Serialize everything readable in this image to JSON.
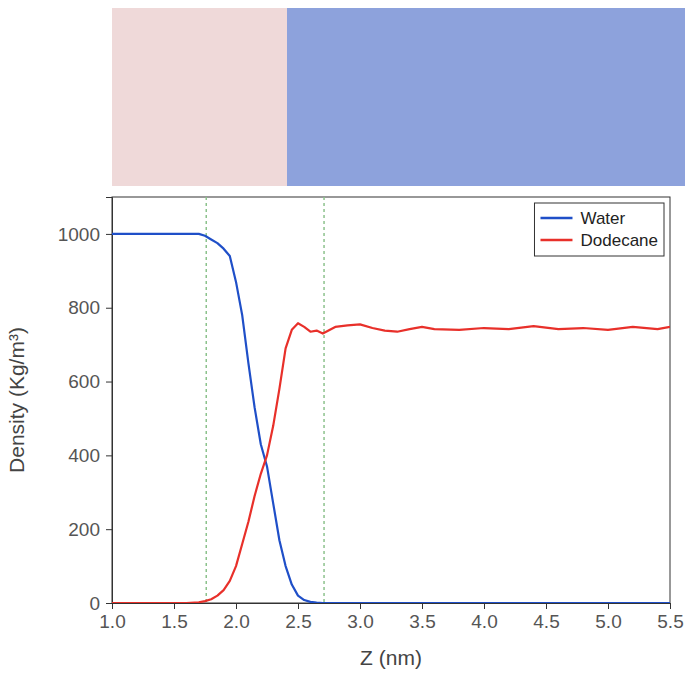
{
  "chart_data": {
    "type": "line",
    "x_label": "Z (nm)",
    "y_label": "Density (Kg/m³)",
    "x": [
      1.0,
      1.5,
      1.6,
      1.7,
      1.75,
      1.8,
      1.85,
      1.9,
      1.95,
      2.0,
      2.05,
      2.1,
      2.15,
      2.2,
      2.25,
      2.3,
      2.35,
      2.4,
      2.45,
      2.5,
      2.55,
      2.6,
      2.65,
      2.7,
      2.8,
      2.9,
      3.0,
      3.1,
      3.2,
      3.3,
      3.4,
      3.5,
      3.6,
      3.8,
      4.0,
      4.2,
      4.4,
      4.6,
      4.8,
      5.0,
      5.2,
      5.4,
      5.5
    ],
    "series": [
      {
        "name": "Water",
        "color": "#1f4fc8",
        "values": [
          1000,
          1000,
          1000,
          1000,
          995,
          985,
          975,
          960,
          940,
          870,
          780,
          650,
          530,
          430,
          370,
          270,
          170,
          100,
          50,
          20,
          8,
          3,
          1,
          0,
          0,
          0,
          0,
          0,
          0,
          0,
          0,
          0,
          0,
          0,
          0,
          0,
          0,
          0,
          0,
          0,
          0,
          0,
          0
        ]
      },
      {
        "name": "Dodecane",
        "color": "#e8302a",
        "values": [
          0,
          0,
          0,
          2,
          5,
          10,
          20,
          35,
          60,
          100,
          160,
          220,
          290,
          350,
          400,
          480,
          580,
          690,
          740,
          758,
          748,
          735,
          738,
          730,
          748,
          752,
          755,
          745,
          738,
          735,
          742,
          748,
          742,
          740,
          745,
          742,
          750,
          742,
          745,
          740,
          748,
          742,
          748
        ]
      }
    ],
    "vlines": [
      1.76,
      2.71
    ],
    "xlim": [
      1.0,
      5.5
    ],
    "xticks": [
      {
        "value": 1.0,
        "label": "1.0"
      },
      {
        "value": 1.5,
        "label": "1.5"
      },
      {
        "value": 2.0,
        "label": "2.0"
      },
      {
        "value": 2.5,
        "label": "2.5"
      },
      {
        "value": 3.0,
        "label": "3.0"
      },
      {
        "value": 3.5,
        "label": "3.5"
      },
      {
        "value": 4.0,
        "label": "4.0"
      },
      {
        "value": 4.5,
        "label": "4.5"
      },
      {
        "value": 5.0,
        "label": "5.0"
      },
      {
        "value": 5.5,
        "label": "5.5"
      }
    ],
    "ylim": [
      0,
      1100
    ],
    "yticks": [
      0,
      200,
      400,
      600,
      800,
      1000
    ],
    "legend": "top-right",
    "grid": false
  }
}
